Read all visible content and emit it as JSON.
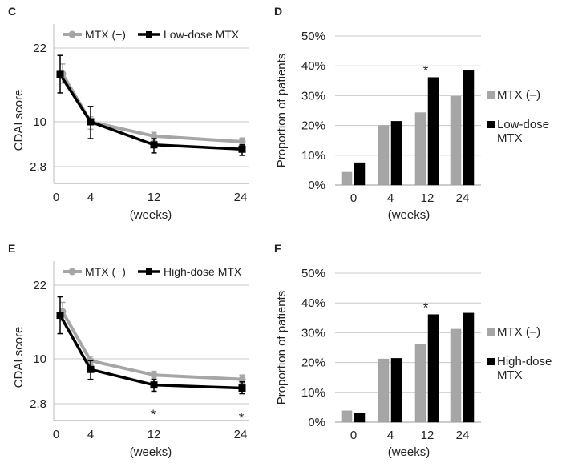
{
  "colors": {
    "gray": "#a6a6a6",
    "black": "#000000",
    "grid": "#c8c8c8"
  },
  "chart_data": [
    {
      "panel_label": "C",
      "type": "line",
      "ylabel": "CDAI score",
      "xlabel": "(weeks)",
      "x": [
        0,
        4,
        12,
        24
      ],
      "x_tick_labels": [
        "0",
        "4",
        "12",
        "24"
      ],
      "y_ticks": [
        22,
        10,
        2.8
      ],
      "y_tick_labels": [
        "22",
        "10",
        "2.8"
      ],
      "grid": true,
      "legend": "top",
      "series": [
        {
          "name": "MTX (−)",
          "color": "#a6a6a6",
          "marker": "circle",
          "values": [
            17.8,
            10.0,
            7.7,
            6.8
          ],
          "err_low": [
            16.3,
            8.8,
            7.0,
            6.2
          ],
          "err_high": [
            19.4,
            10.8,
            8.3,
            7.4
          ]
        },
        {
          "name": "Low-dose MTX",
          "color": "#000000",
          "marker": "square",
          "values": [
            17.7,
            10.0,
            6.3,
            5.6
          ],
          "err_low": [
            14.7,
            7.3,
            5.0,
            4.6
          ],
          "err_high": [
            20.8,
            12.5,
            7.3,
            6.3
          ]
        }
      ],
      "annotations": []
    },
    {
      "panel_label": "D",
      "type": "bar",
      "ylabel": "Proportion of patients",
      "xlabel": "(weeks)",
      "categories": [
        "0",
        "4",
        "12",
        "24"
      ],
      "y_tick_labels": [
        "0%",
        "10%",
        "20%",
        "30%",
        "40%",
        "50%"
      ],
      "ylim": [
        0,
        50
      ],
      "grid": true,
      "legend": "right",
      "series": [
        {
          "name": "MTX (–)",
          "name_lines": [
            "MTX (–)"
          ],
          "color": "#a6a6a6",
          "values": [
            4.3,
            20.0,
            24.3,
            29.8
          ]
        },
        {
          "name": "Low-dose MTX",
          "name_lines": [
            "Low-dose",
            "MTX"
          ],
          "color": "#000000",
          "values": [
            7.5,
            21.4,
            36.1,
            38.4
          ]
        }
      ],
      "annotations": [
        {
          "category": "12",
          "text": "*"
        }
      ]
    },
    {
      "panel_label": "E",
      "type": "line",
      "ylabel": "CDAI score",
      "xlabel": "(weeks)",
      "x": [
        0,
        4,
        12,
        24
      ],
      "x_tick_labels": [
        "0",
        "4",
        "12",
        "24"
      ],
      "y_ticks": [
        22,
        10,
        2.8
      ],
      "y_tick_labels": [
        "22",
        "10",
        "2.8"
      ],
      "grid": true,
      "legend": "top",
      "series": [
        {
          "name": "MTX (−)",
          "color": "#a6a6a6",
          "marker": "circle",
          "values": [
            17.7,
            9.7,
            7.4,
            6.7
          ],
          "err_low": [
            16.2,
            9.0,
            6.8,
            6.1
          ],
          "err_high": [
            19.2,
            10.4,
            8.0,
            7.4
          ]
        },
        {
          "name": "High-dose MTX",
          "color": "#000000",
          "marker": "square",
          "values": [
            17.1,
            8.3,
            5.8,
            5.3
          ],
          "err_low": [
            14.1,
            6.7,
            4.8,
            4.4
          ],
          "err_high": [
            20.1,
            9.7,
            6.7,
            6.3
          ]
        }
      ],
      "annotations": [
        {
          "x": 12,
          "text": "*"
        },
        {
          "x": 24,
          "text": "*"
        }
      ]
    },
    {
      "panel_label": "F",
      "type": "bar",
      "ylabel": "Proportion of patients",
      "xlabel": "(weeks)",
      "categories": [
        "0",
        "4",
        "12",
        "24"
      ],
      "y_tick_labels": [
        "0%",
        "10%",
        "20%",
        "30%",
        "40%",
        "50%"
      ],
      "ylim": [
        0,
        50
      ],
      "grid": true,
      "legend": "right",
      "series": [
        {
          "name": "MTX (–)",
          "name_lines": [
            "MTX (–)"
          ],
          "color": "#a6a6a6",
          "values": [
            3.8,
            21.2,
            26.1,
            31.2
          ]
        },
        {
          "name": "High-dose MTX",
          "name_lines": [
            "High-dose",
            "MTX"
          ],
          "color": "#000000",
          "values": [
            3.1,
            21.4,
            36.1,
            36.6
          ]
        }
      ],
      "annotations": [
        {
          "category": "12",
          "text": "*"
        }
      ]
    }
  ]
}
